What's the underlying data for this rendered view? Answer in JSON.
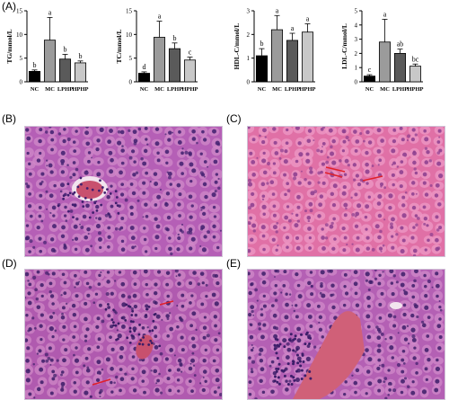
{
  "panel_labels": {
    "a": "(A)",
    "b": "(B)",
    "c": "(C)",
    "d": "(D)",
    "e": "(E)"
  },
  "chart_data": [
    {
      "type": "bar",
      "categories": [
        "NC",
        "MC",
        "LPHP",
        "HPHP"
      ],
      "values": [
        2.2,
        8.8,
        4.8,
        4.0
      ],
      "errors": [
        0.3,
        4.8,
        1.0,
        0.4
      ],
      "sig_letters": [
        "b",
        "a",
        "b",
        "b"
      ],
      "ylabel": "TG/mmol/L",
      "ylim": [
        0,
        15
      ],
      "yticks": [
        0,
        5,
        10,
        15
      ],
      "bar_colors": [
        "#000000",
        "#9b9b9b",
        "#5a5a5a",
        "#c8c8c8"
      ]
    },
    {
      "type": "bar",
      "categories": [
        "NC",
        "MC",
        "LPHP",
        "HPHP"
      ],
      "values": [
        1.8,
        9.4,
        7.0,
        4.6
      ],
      "errors": [
        0.3,
        3.4,
        1.2,
        0.6
      ],
      "sig_letters": [
        "d",
        "a",
        "b",
        "c"
      ],
      "ylabel": "TC/mmol/L",
      "ylim": [
        0,
        15
      ],
      "yticks": [
        0,
        5,
        10,
        15
      ],
      "bar_colors": [
        "#000000",
        "#9b9b9b",
        "#5a5a5a",
        "#c8c8c8"
      ]
    },
    {
      "type": "bar",
      "categories": [
        "NC",
        "MC",
        "LPHP",
        "HPHP"
      ],
      "values": [
        1.1,
        2.2,
        1.75,
        2.1
      ],
      "errors": [
        0.3,
        0.6,
        0.3,
        0.35
      ],
      "sig_letters": [
        "b",
        "a",
        "a",
        "a"
      ],
      "ylabel": "HDL-C/mmol/L",
      "ylim": [
        0,
        3
      ],
      "yticks": [
        0,
        1,
        2,
        3
      ],
      "bar_colors": [
        "#000000",
        "#9b9b9b",
        "#5a5a5a",
        "#c8c8c8"
      ]
    },
    {
      "type": "bar",
      "categories": [
        "NC",
        "MC",
        "LPHP",
        "HPHP"
      ],
      "values": [
        0.4,
        2.8,
        2.0,
        1.1
      ],
      "errors": [
        0.1,
        1.6,
        0.3,
        0.15
      ],
      "sig_letters": [
        "c",
        "a",
        "ab",
        "bc"
      ],
      "ylabel": "LDL-C/mmol/L",
      "ylim": [
        0,
        5
      ],
      "yticks": [
        0,
        1,
        2,
        3,
        4,
        5
      ],
      "bar_colors": [
        "#000000",
        "#9b9b9b",
        "#5a5a5a",
        "#c8c8c8"
      ]
    }
  ],
  "micrographs": {
    "b": {
      "tissue": "#b55fb6",
      "cell": "#d08ac8",
      "nucleus": "#3f1f6e",
      "blood": "#c8506e"
    },
    "c": {
      "tissue": "#e070a6",
      "cell": "#ee9ac6",
      "nucleus": "#8a3d8e",
      "arrow": "#e0202a"
    },
    "d": {
      "tissue": "#b05aaf",
      "cell": "#cf88c6",
      "nucleus": "#3a1c66",
      "blood": "#c8506e",
      "arrow": "#e0202a"
    },
    "e": {
      "tissue": "#b460b4",
      "cell": "#d08ac9",
      "nucleus": "#3c1d69",
      "blood": "#d06078"
    }
  }
}
